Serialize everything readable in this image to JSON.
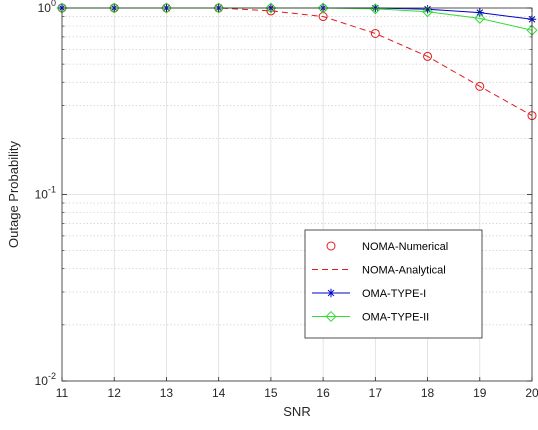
{
  "chart_data": {
    "type": "line",
    "xlabel": "SNR",
    "ylabel": "Outage Probability",
    "xlim": [
      11,
      20
    ],
    "ylim": [
      0.01,
      1
    ],
    "yscale": "log",
    "grid": true,
    "legend_position": "bottom-right",
    "x_ticks": [
      "11",
      "12",
      "13",
      "14",
      "15",
      "16",
      "17",
      "18",
      "19",
      "20"
    ],
    "y_ticks": [
      {
        "value": 1,
        "base": "10",
        "exp": "0"
      },
      {
        "value": 0.1,
        "base": "10",
        "exp": "-1"
      },
      {
        "value": 0.01,
        "base": "10",
        "exp": "-2"
      }
    ],
    "x": [
      11,
      12,
      13,
      14,
      15,
      16,
      17,
      18,
      19,
      20
    ],
    "series": [
      {
        "name": "NOMA-Numerical",
        "color": "#e31a1c",
        "line": "none",
        "marker": "circle",
        "values": [
          1.0,
          1.0,
          1.0,
          1.0,
          0.965,
          0.9,
          0.73,
          0.55,
          0.38,
          0.265
        ]
      },
      {
        "name": "NOMA-Analytical",
        "color": "#e31a1c",
        "line": "dashed",
        "marker": "none",
        "values": [
          1.0,
          1.0,
          1.0,
          1.0,
          0.965,
          0.9,
          0.73,
          0.55,
          0.38,
          0.265
        ]
      },
      {
        "name": "OMA-TYPE-I",
        "color": "#0000cc",
        "line": "solid",
        "marker": "asterisk",
        "values": [
          1.0,
          1.0,
          1.0,
          1.0,
          1.0,
          1.0,
          1.0,
          0.985,
          0.945,
          0.87
        ]
      },
      {
        "name": "OMA-TYPE-II",
        "color": "#33dd33",
        "line": "solid",
        "marker": "diamond",
        "values": [
          1.0,
          1.0,
          1.0,
          1.0,
          1.0,
          1.0,
          0.99,
          0.955,
          0.88,
          0.76
        ]
      }
    ]
  }
}
